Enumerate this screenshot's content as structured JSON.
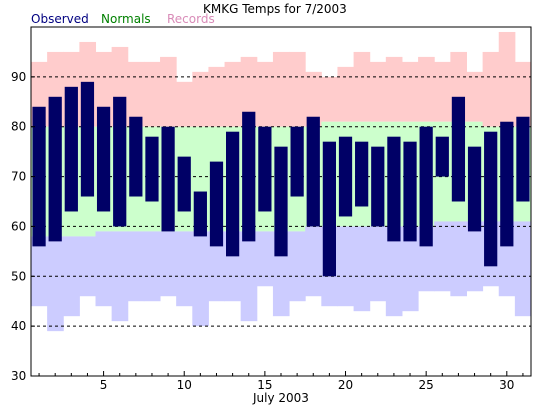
{
  "chart_data": {
    "type": "bar",
    "title": "KMKG Temps for 7/2003",
    "xlabel": "July 2003",
    "ylabel": "",
    "xlim": [
      0.5,
      31.5
    ],
    "ylim": [
      30,
      100
    ],
    "yticks": [
      30,
      40,
      50,
      60,
      70,
      80,
      90
    ],
    "xticks": [
      5,
      10,
      15,
      20,
      25,
      30
    ],
    "grid": "horizontal dashed at 40, 50, 60, 70, 80, 90",
    "legend": [
      {
        "name": "Observed",
        "color": "#000080"
      },
      {
        "name": "Normals",
        "color": "#008000"
      },
      {
        "name": "Records",
        "color": "#d98cb8"
      }
    ],
    "legend_placement": "top-left",
    "colors": {
      "observed": "#000066",
      "normals": "#ccffcc",
      "records_high": "#ffcccc",
      "records_low": "#ccccff"
    },
    "days": [
      1,
      2,
      3,
      4,
      5,
      6,
      7,
      8,
      9,
      10,
      11,
      12,
      13,
      14,
      15,
      16,
      17,
      18,
      19,
      20,
      21,
      22,
      23,
      24,
      25,
      26,
      27,
      28,
      29,
      30,
      31
    ],
    "observed_high": [
      84,
      86,
      88,
      89,
      84,
      86,
      82,
      78,
      80,
      74,
      67,
      73,
      79,
      83,
      80,
      76,
      80,
      82,
      77,
      78,
      77,
      76,
      78,
      77,
      80,
      78,
      86,
      76,
      79,
      81,
      82
    ],
    "observed_low": [
      56,
      57,
      63,
      66,
      63,
      60,
      66,
      65,
      59,
      63,
      58,
      56,
      54,
      57,
      63,
      54,
      66,
      60,
      50,
      62,
      64,
      60,
      57,
      57,
      56,
      70,
      65,
      59,
      52,
      56,
      65
    ],
    "normal_high": [
      80,
      80,
      80,
      80,
      80,
      80,
      80,
      80,
      80,
      80,
      80,
      80,
      80,
      80,
      80,
      80,
      80,
      80,
      81,
      81,
      81,
      81,
      81,
      81,
      81,
      81,
      81,
      81,
      80,
      80,
      80
    ],
    "normal_low": [
      58,
      58,
      58,
      58,
      59,
      59,
      59,
      59,
      59,
      59,
      59,
      59,
      59,
      59,
      59,
      59,
      59,
      60,
      60,
      60,
      60,
      60,
      60,
      60,
      60,
      61,
      61,
      61,
      61,
      61,
      61
    ],
    "record_high": [
      93,
      95,
      95,
      97,
      95,
      96,
      93,
      93,
      94,
      89,
      91,
      92,
      93,
      94,
      93,
      95,
      95,
      91,
      90,
      92,
      95,
      93,
      94,
      93,
      94,
      93,
      95,
      91,
      95,
      99,
      93
    ],
    "record_low": [
      44,
      39,
      42,
      46,
      44,
      41,
      45,
      45,
      46,
      44,
      40,
      45,
      45,
      41,
      48,
      42,
      45,
      46,
      44,
      44,
      43,
      45,
      42,
      43,
      47,
      47,
      46,
      47,
      48,
      46,
      42
    ]
  }
}
